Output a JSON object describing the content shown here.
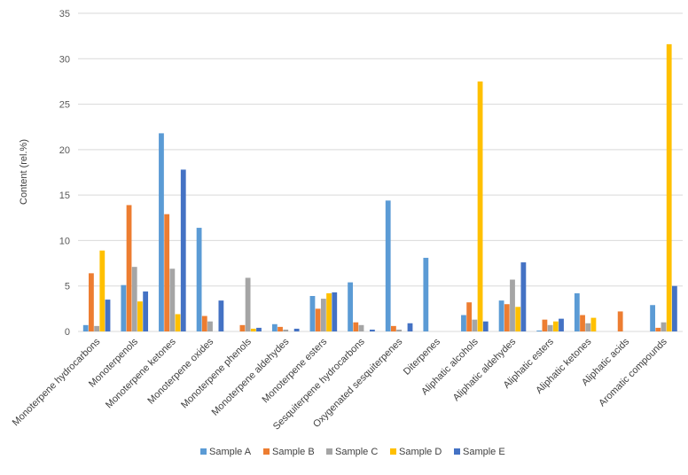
{
  "chart_data": {
    "type": "bar",
    "title": "",
    "xlabel": "",
    "ylabel": "Content (rel.%)",
    "ylim": [
      0,
      35
    ],
    "yticks": [
      0,
      5,
      10,
      15,
      20,
      25,
      30,
      35
    ],
    "grid": true,
    "legend_position": "bottom",
    "categories": [
      "Monoterpene hydrocarbons",
      "Monoterpenols",
      "Monoterpene ketones",
      "Monoterpene oxides",
      "Monoterpene phenols",
      "Monoterpene aldehydes",
      "Monoterpene esters",
      "Sesquiterpene hydrocarbons",
      "Oxygenated sesquiterpenes",
      "Diterpenes",
      "Aliphatic alcohols",
      "Aliphatic aldehydes",
      "Aliphatic esters",
      "Aliphatic ketones",
      "Aliphatic acids",
      "Aromatic compounds"
    ],
    "series": [
      {
        "name": "Sample A",
        "color": "#5B9BD5",
        "values": [
          0.7,
          5.1,
          21.8,
          11.4,
          0.0,
          0.8,
          3.9,
          5.4,
          14.4,
          8.1,
          1.8,
          3.4,
          0.1,
          4.2,
          0.0,
          2.9
        ]
      },
      {
        "name": "Sample B",
        "color": "#ED7D31",
        "values": [
          6.4,
          13.9,
          12.9,
          1.7,
          0.7,
          0.5,
          2.5,
          1.0,
          0.6,
          0.0,
          3.2,
          3.0,
          1.3,
          1.8,
          2.2,
          0.4
        ]
      },
      {
        "name": "Sample C",
        "color": "#A5A5A5",
        "values": [
          0.6,
          7.1,
          6.9,
          1.1,
          5.9,
          0.2,
          3.6,
          0.7,
          0.2,
          0.0,
          1.3,
          5.7,
          0.7,
          0.9,
          0.0,
          1.0
        ]
      },
      {
        "name": "Sample D",
        "color": "#FFC000",
        "values": [
          8.9,
          3.3,
          1.9,
          0.0,
          0.3,
          0.0,
          4.2,
          0.0,
          0.0,
          0.0,
          27.5,
          2.7,
          1.1,
          1.5,
          0.0,
          31.6
        ]
      },
      {
        "name": "Sample E",
        "color": "#4472C4",
        "values": [
          3.5,
          4.4,
          17.8,
          3.4,
          0.4,
          0.3,
          4.3,
          0.2,
          0.9,
          0.0,
          1.1,
          7.6,
          1.4,
          0.0,
          0.0,
          5.0
        ]
      }
    ]
  }
}
